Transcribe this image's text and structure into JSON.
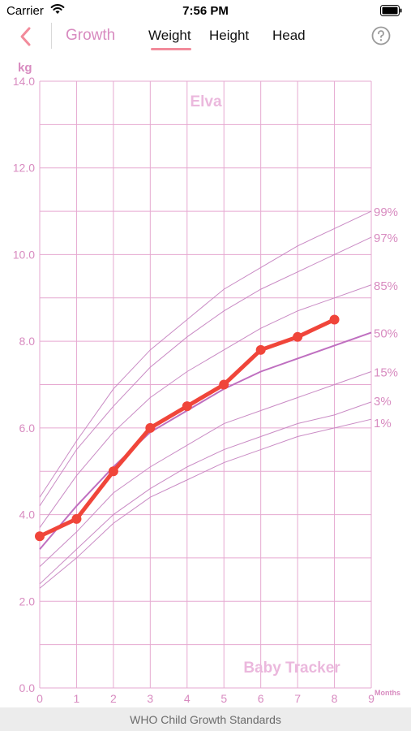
{
  "status_bar": {
    "carrier": "Carrier",
    "time": "7:56 PM"
  },
  "nav": {
    "title": "Growth",
    "tabs": [
      "Weight",
      "Height",
      "Head"
    ],
    "active_tab": "Weight"
  },
  "footer": {
    "text": "WHO Child Growth Standards"
  },
  "colors": {
    "accent": "#d88bc0",
    "grid": "#e6a9d1",
    "percentile": "#c98ac4",
    "series": "#f0453a",
    "tab_underline": "#f28b9b"
  },
  "chart_data": {
    "type": "line",
    "title": "Elva",
    "watermark": "Baby Tracker",
    "ylabel": "kg",
    "xlabel": "Months",
    "xlim": [
      0,
      9
    ],
    "ylim": [
      0,
      14
    ],
    "x_ticks": [
      "0",
      "1",
      "2",
      "3",
      "4",
      "5",
      "6",
      "7",
      "8",
      "9"
    ],
    "y_ticks": [
      "0.0",
      "2.0",
      "4.0",
      "6.0",
      "8.0",
      "10.0",
      "12.0",
      "14.0"
    ],
    "grid": true,
    "percentiles": [
      {
        "name": "99%",
        "values": [
          4.4,
          5.7,
          6.9,
          7.8,
          8.5,
          9.2,
          9.7,
          10.2,
          10.6,
          11.0
        ]
      },
      {
        "name": "97%",
        "values": [
          4.2,
          5.5,
          6.5,
          7.4,
          8.1,
          8.7,
          9.2,
          9.6,
          10.0,
          10.4
        ]
      },
      {
        "name": "85%",
        "values": [
          3.7,
          4.9,
          5.9,
          6.7,
          7.3,
          7.8,
          8.3,
          8.7,
          9.0,
          9.3
        ]
      },
      {
        "name": "50%",
        "values": [
          3.2,
          4.2,
          5.1,
          5.9,
          6.4,
          6.9,
          7.3,
          7.6,
          7.9,
          8.2
        ]
      },
      {
        "name": "15%",
        "values": [
          2.8,
          3.6,
          4.5,
          5.1,
          5.6,
          6.1,
          6.4,
          6.7,
          7.0,
          7.3
        ]
      },
      {
        "name": "3%",
        "values": [
          2.4,
          3.2,
          4.0,
          4.6,
          5.1,
          5.5,
          5.8,
          6.1,
          6.3,
          6.6
        ]
      },
      {
        "name": "1%",
        "values": [
          2.3,
          3.0,
          3.8,
          4.4,
          4.8,
          5.2,
          5.5,
          5.8,
          6.0,
          6.2
        ]
      }
    ],
    "series": [
      {
        "x": [
          0,
          1,
          2,
          3,
          4,
          5,
          6,
          7,
          8
        ],
        "values": [
          3.5,
          3.9,
          5.0,
          6.0,
          6.5,
          7.0,
          7.8,
          8.1,
          8.5
        ]
      }
    ]
  }
}
